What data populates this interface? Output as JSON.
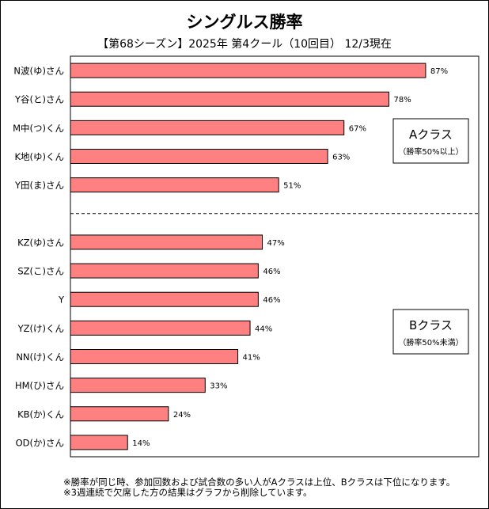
{
  "chart_data": {
    "type": "bar",
    "orientation": "horizontal",
    "title": "シングルス勝率",
    "subtitle": "【第68シーズン】2025年 第4クール（10回目） 12/3現在",
    "xlim": [
      0,
      100
    ],
    "categories": [
      "N波(ゆ)さん",
      "Y谷(と)さん",
      "M中(つ)くん",
      "K地(ゆ)くん",
      "Y田(ま)さん",
      "KZ(ゆ)さん",
      "SZ(こ)さん",
      "Y",
      "YZ(け)くん",
      "NN(け)くん",
      "HM(ひ)さん",
      "KB(か)くん",
      "OD(か)さん"
    ],
    "values": [
      87,
      78,
      67,
      63,
      51,
      47,
      46,
      46,
      44,
      41,
      33,
      24,
      14
    ],
    "value_labels": [
      "87%",
      "78%",
      "67%",
      "63%",
      "51%",
      "47%",
      "46%",
      "46%",
      "44%",
      "41%",
      "33%",
      "24%",
      "14%"
    ],
    "groups": [
      {
        "name": "Aクラス",
        "note": "（勝率50%以上）",
        "count": 5
      },
      {
        "name": "Bクラス",
        "note": "（勝率50%未満）",
        "count": 8
      }
    ],
    "bar_color": "#ff8080",
    "grid": false
  },
  "notes": [
    "※勝率が同じ時、参加回数および試合数の多い人がAクラスは上位、Bクラスは下位になります。",
    "※3週連続で欠席した方の結果はグラフから削除しています。"
  ]
}
